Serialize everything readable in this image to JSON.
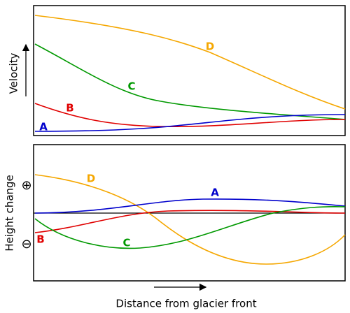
{
  "panels": [
    {
      "axis_label": "Velocity",
      "curves": [
        {
          "label": "A",
          "color": "#0000cc"
        },
        {
          "label": "B",
          "color": "#e00000"
        },
        {
          "label": "C",
          "color": "#009900"
        },
        {
          "label": "D",
          "color": "#f5a700"
        }
      ]
    },
    {
      "axis_label": "Height change",
      "positive": "⊕",
      "negative": "⊖",
      "curves": [
        {
          "label": "A",
          "color": "#0000cc"
        },
        {
          "label": "B",
          "color": "#e00000"
        },
        {
          "label": "C",
          "color": "#009900"
        },
        {
          "label": "D",
          "color": "#f5a700"
        }
      ]
    }
  ],
  "x_axis_label": "Distance from glacier front"
}
